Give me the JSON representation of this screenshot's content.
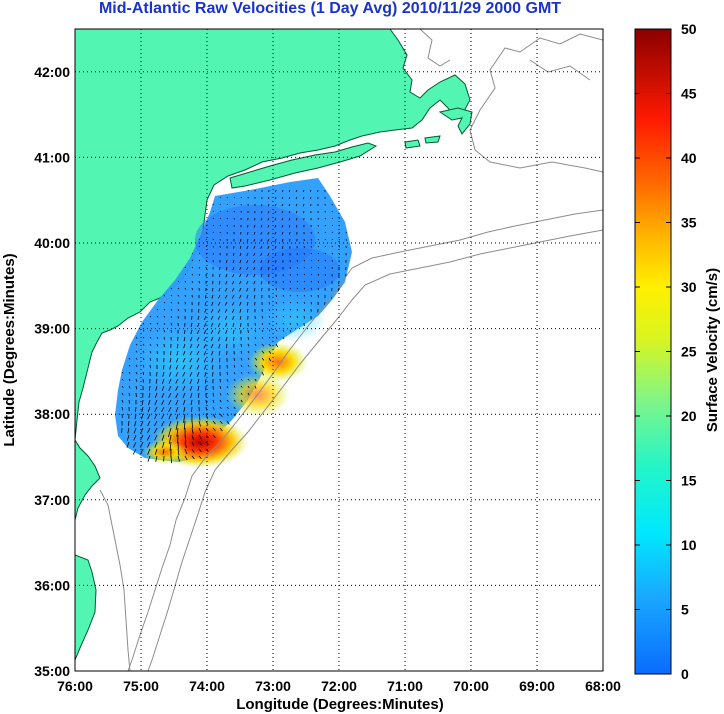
{
  "title": "Mid-Atlantic Raw Velocities (1 Day Avg) 2010/11/29 2000 GMT",
  "map": {
    "xlabel": "Longitude (Degrees:Minutes)",
    "ylabel": "Latitude (Degrees:Minutes)",
    "lon_range": [
      -76,
      -68
    ],
    "lat_range": [
      35,
      42.5
    ],
    "x_ticks": [
      "76:00",
      "75:00",
      "74:00",
      "73:00",
      "72:00",
      "71:00",
      "70:00",
      "69:00",
      "68:00"
    ],
    "y_ticks": [
      "35:00",
      "36:00",
      "37:00",
      "38:00",
      "39:00",
      "40:00",
      "41:00",
      "42:00"
    ],
    "grid": "dotted",
    "land_color": "#52f5b2",
    "isobath_color": "#8c8c8c"
  },
  "colorbar": {
    "label": "Surface Velocity (cm/s)",
    "min": 0,
    "max": 50,
    "ticks": [
      "0",
      "5",
      "10",
      "15",
      "20",
      "25",
      "30",
      "35",
      "40",
      "45",
      "50"
    ]
  }
}
